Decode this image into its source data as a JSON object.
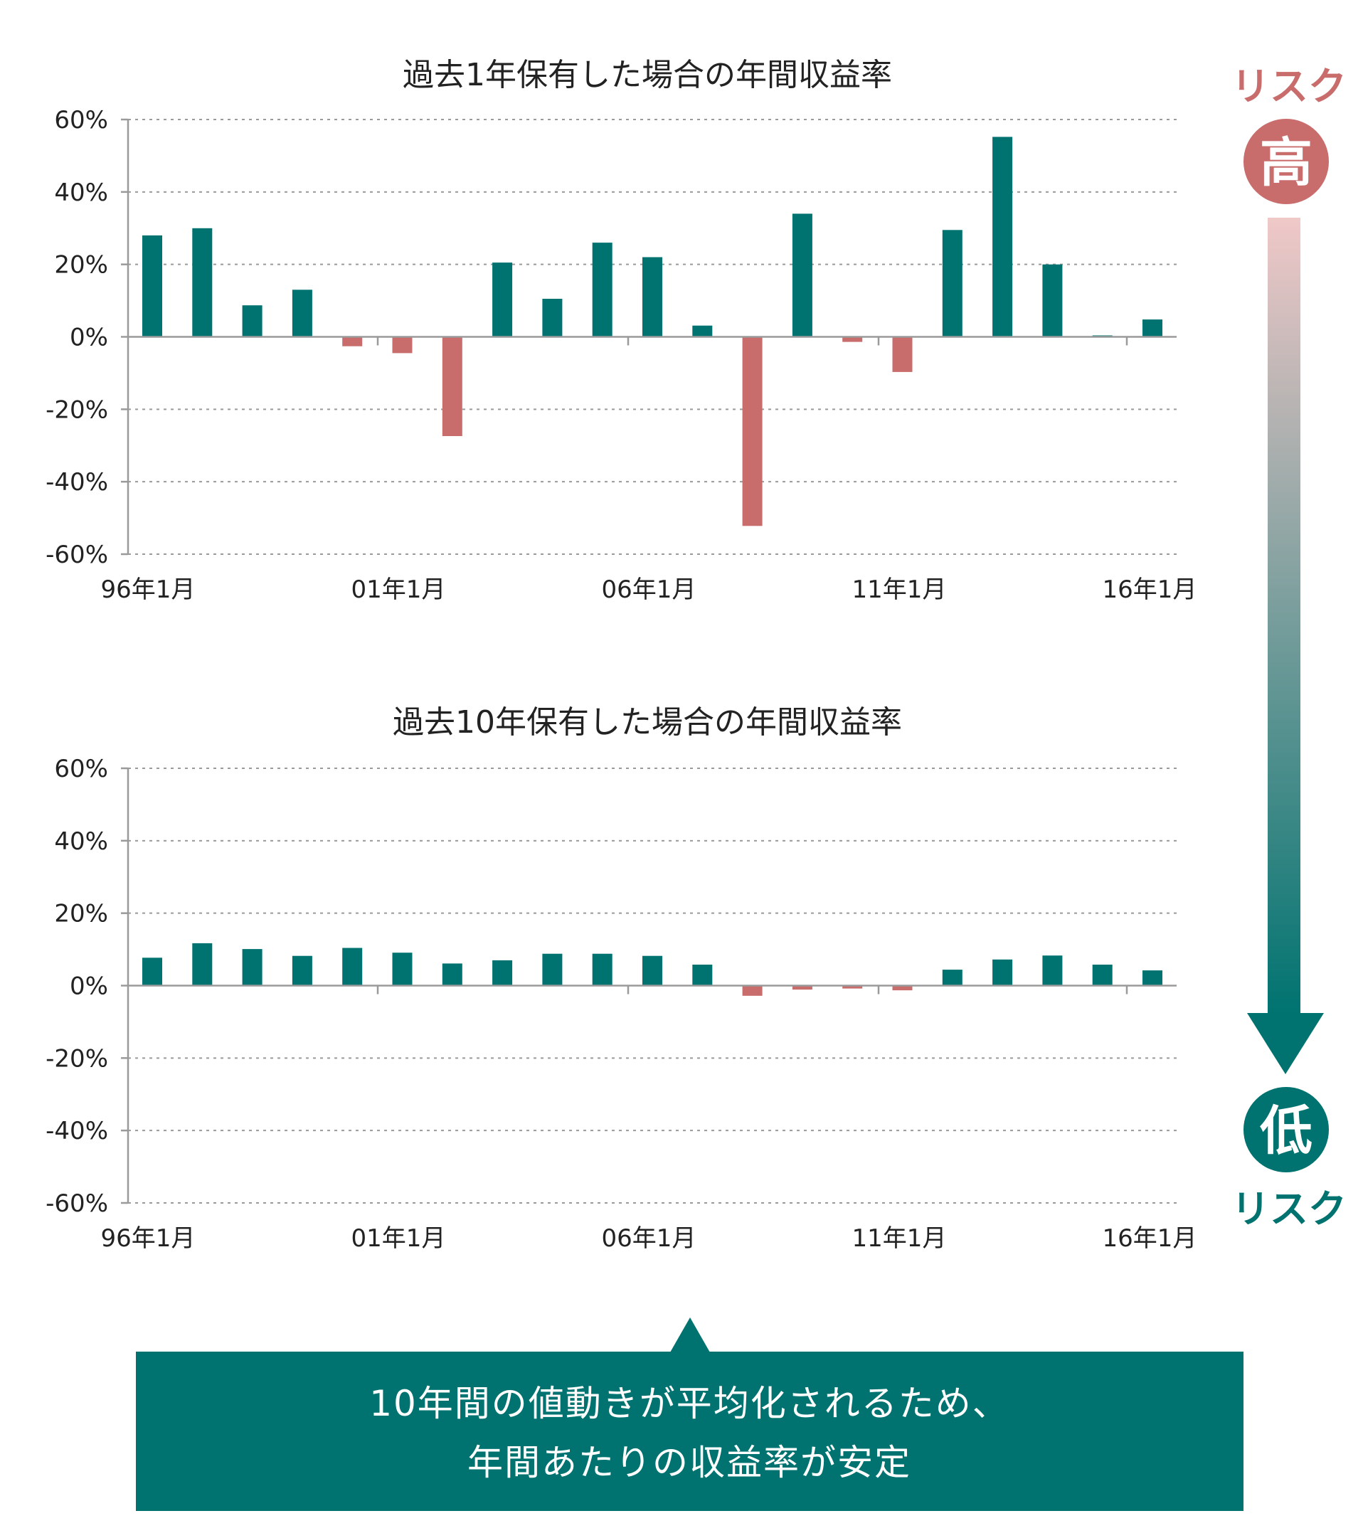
{
  "colors": {
    "positive": "#007370",
    "negative": "#C96C6C",
    "risk_high": "#C96C6C",
    "risk_low": "#007370",
    "arrow_top": "#F0C8C8",
    "arrow_bottom": "#007370",
    "callout_bg": "#007370"
  },
  "risk_scale": {
    "top_label": "リスク",
    "high_badge": "高",
    "low_badge": "低",
    "bottom_label": "リスク",
    "icon": "down-arrow-icon"
  },
  "callout": {
    "line1": "10年間の値動きが平均化されるため、",
    "line2": "年間あたりの収益率が安定"
  },
  "chart_data": [
    {
      "type": "bar",
      "title": "過去1年保有した場合の年間収益率",
      "xlabel": "",
      "ylabel": "",
      "ylim": [
        -60,
        60
      ],
      "yticks": [
        60,
        40,
        20,
        0,
        -20,
        -40,
        -60
      ],
      "yticklabels": [
        "60%",
        "40%",
        "20%",
        "0%",
        "-20%",
        "-40%",
        "-60%"
      ],
      "xticklabels": [
        "96年1月",
        "01年1月",
        "06年1月",
        "11年1月",
        "16年1月"
      ],
      "grid": true,
      "values": [
        28,
        30,
        8.7,
        13,
        -2.6,
        -4.5,
        -27.4,
        20.5,
        10.5,
        26,
        22,
        3.1,
        -52.2,
        34,
        -1.4,
        -9.7,
        29.5,
        55.2,
        20,
        0.4,
        4.8
      ]
    },
    {
      "type": "bar",
      "title": "過去10年保有した場合の年間収益率",
      "xlabel": "",
      "ylabel": "",
      "ylim": [
        -60,
        60
      ],
      "yticks": [
        60,
        40,
        20,
        0,
        -20,
        -40,
        -60
      ],
      "yticklabels": [
        "60%",
        "40%",
        "20%",
        "0%",
        "-20%",
        "-40%",
        "-60%"
      ],
      "xticklabels": [
        "96年1月",
        "01年1月",
        "06年1月",
        "11年1月",
        "16年1月"
      ],
      "grid": true,
      "values": [
        7.7,
        11.7,
        10.1,
        8.2,
        10.4,
        9.1,
        6.1,
        7,
        8.8,
        8.8,
        8.2,
        5.8,
        -2.8,
        -1.1,
        -0.8,
        -1.3,
        4.4,
        7.2,
        8.3,
        5.8,
        4.2
      ]
    }
  ]
}
